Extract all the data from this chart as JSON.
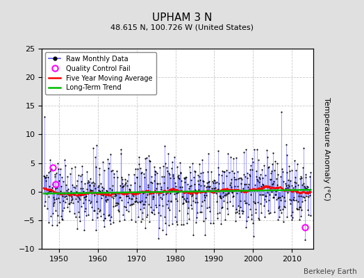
{
  "title": "UPHAM 3 N",
  "subtitle": "48.615 N, 100.726 W (United States)",
  "ylabel": "Temperature Anomaly (°C)",
  "xlabel_ticks": [
    1950,
    1960,
    1970,
    1980,
    1990,
    2000,
    2010
  ],
  "ylim": [
    -10,
    25
  ],
  "yticks": [
    -10,
    -5,
    0,
    5,
    10,
    15,
    20,
    25
  ],
  "xlim": [
    1945.5,
    2015.5
  ],
  "start_year": 1946,
  "end_year": 2014,
  "watermark": "Berkeley Earth",
  "bg_color": "#e0e0e0",
  "plot_bg_color": "#ffffff",
  "raw_line_color": "#5555ff",
  "raw_dot_color": "#000000",
  "moving_avg_color": "#ff0000",
  "trend_color": "#00bb00",
  "qc_fail_color": "#ff00ff",
  "seed": 137,
  "noise_std": 3.0,
  "trend_slope": 0.015,
  "qc_fail_times": [
    1948.25,
    1949.0,
    2013.5
  ],
  "qc_fail_values": [
    4.2,
    1.3,
    -6.2
  ]
}
